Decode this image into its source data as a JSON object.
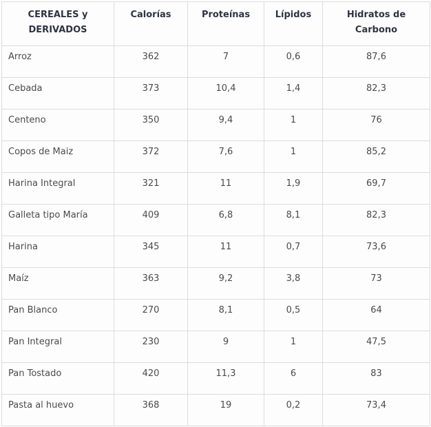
{
  "chart_data": {
    "type": "table",
    "columns": [
      "CEREALES y DERIVADOS",
      "Calorías",
      "Proteínas",
      "Lípidos",
      "Hidratos de Carbono"
    ],
    "rows": [
      [
        "Arroz",
        "362",
        "7",
        "0,6",
        "87,6"
      ],
      [
        "Cebada",
        "373",
        "10,4",
        "1,4",
        "82,3"
      ],
      [
        "Centeno",
        "350",
        "9,4",
        "1",
        "76"
      ],
      [
        "Copos de Maiz",
        "372",
        "7,6",
        "1",
        "85,2"
      ],
      [
        "Harina Integral",
        "321",
        "11",
        "1,9",
        "69,7"
      ],
      [
        "Galleta tipo María",
        "409",
        "6,8",
        "8,1",
        "82,3"
      ],
      [
        "Harina",
        "345",
        "11",
        "0,7",
        "73,6"
      ],
      [
        "Maíz",
        "363",
        "9,2",
        "3,8",
        "73"
      ],
      [
        "Pan Blanco",
        "270",
        "8,1",
        "0,5",
        "64"
      ],
      [
        "Pan Integral",
        "230",
        "9",
        "1",
        "47,5"
      ],
      [
        "Pan Tostado",
        "420",
        "11,3",
        "6",
        "83"
      ],
      [
        "Pasta al huevo",
        "368",
        "19",
        "0,2",
        "73,4"
      ]
    ],
    "layout": {
      "grid": true,
      "header_position": "top",
      "value_alignment": "center",
      "label_alignment": "left"
    }
  },
  "colors": {
    "header_text": "#2e3440",
    "body_text": "#4a4a4a",
    "border": "#dcdcdc",
    "background": "#fdfdfd"
  }
}
